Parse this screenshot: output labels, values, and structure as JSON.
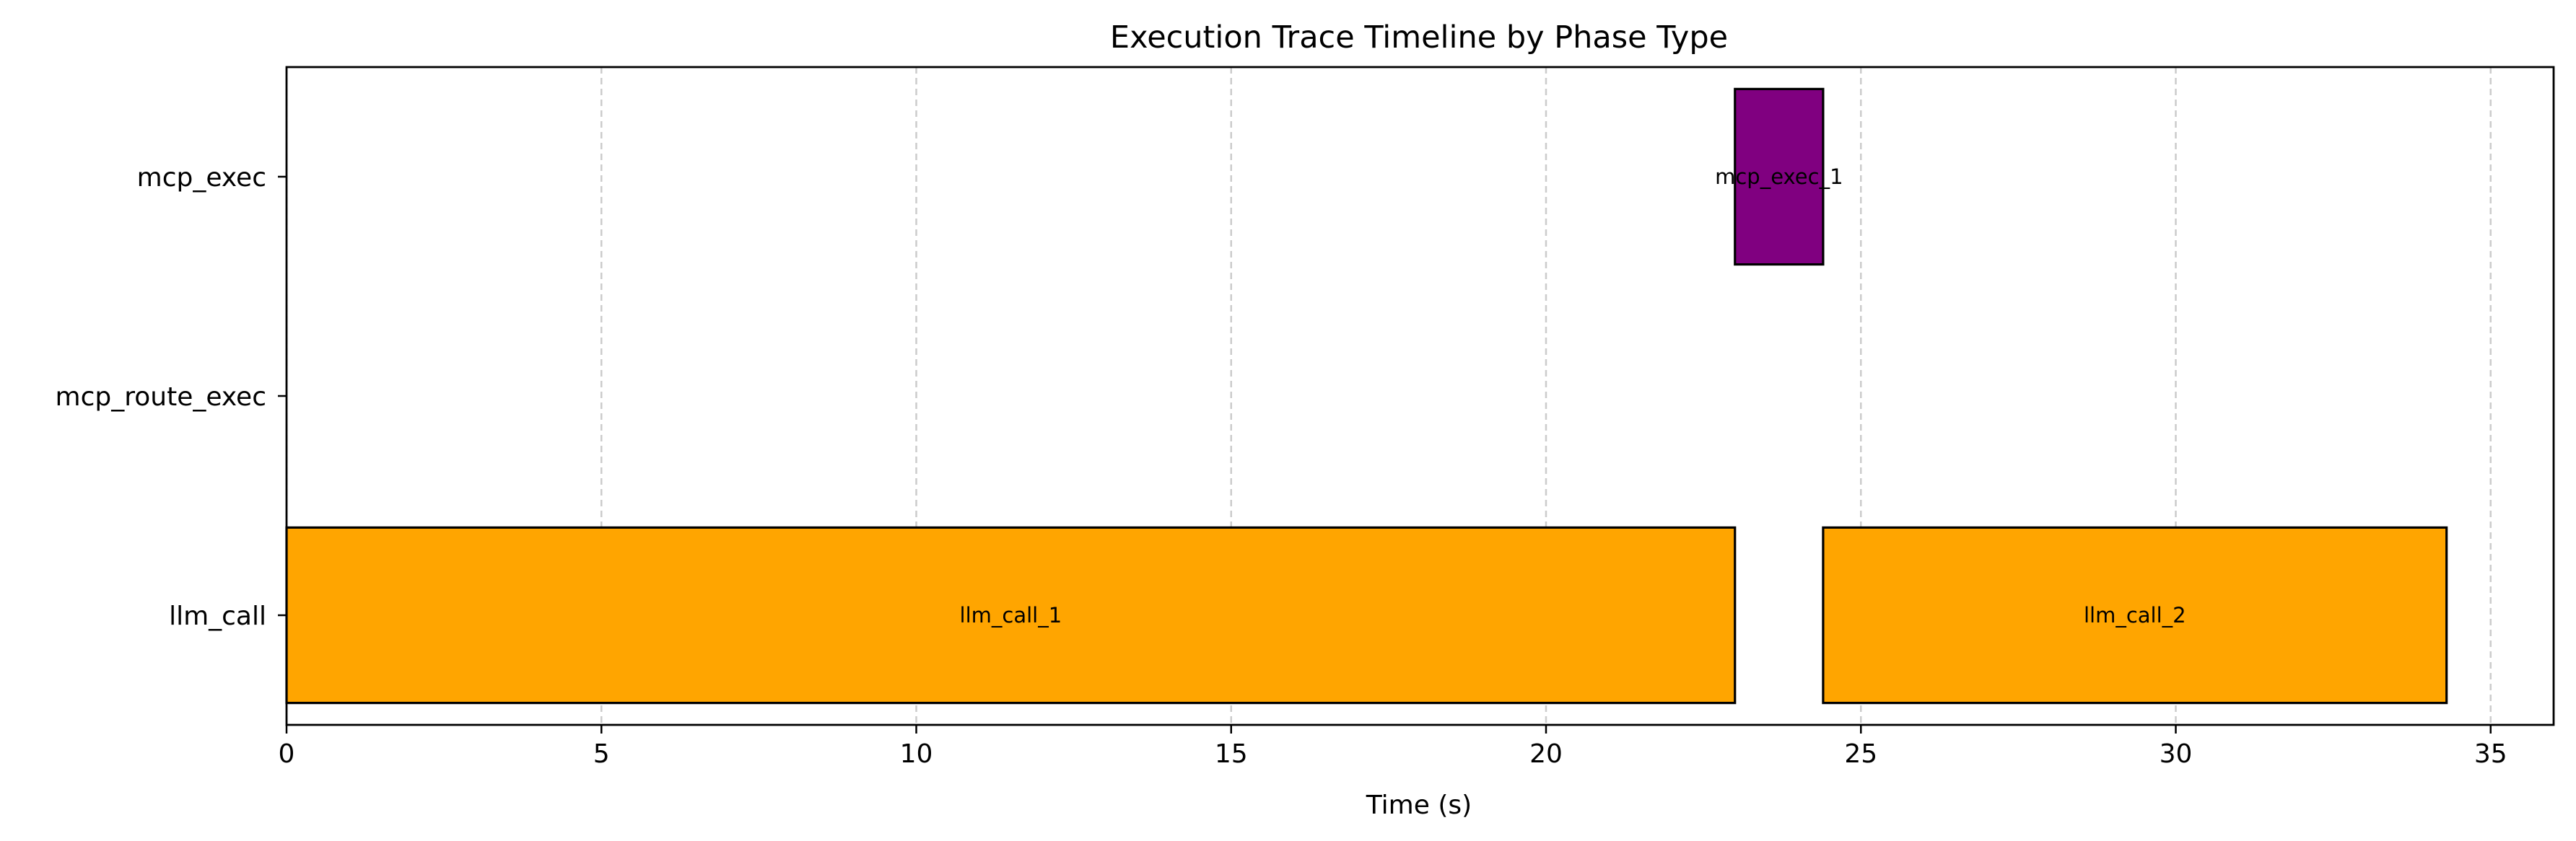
{
  "chart_data": {
    "type": "bar",
    "orientation": "horizontal-timeline",
    "title": "Execution Trace Timeline by Phase Type",
    "xlabel": "Time (s)",
    "ylabel": "",
    "xlim": [
      0,
      36
    ],
    "x_ticks": [
      0,
      5,
      10,
      15,
      20,
      25,
      30,
      35
    ],
    "categories": [
      "llm_call",
      "mcp_route_exec",
      "mcp_exec"
    ],
    "grid": "vertical dashed",
    "bars": [
      {
        "category": "llm_call",
        "label": "llm_call_1",
        "start": 0,
        "end": 23.0,
        "color": "#FFA500"
      },
      {
        "category": "mcp_exec",
        "label": "mcp_exec_1",
        "start": 23.0,
        "end": 24.4,
        "color": "#800080"
      },
      {
        "category": "llm_call",
        "label": "llm_call_2",
        "start": 24.4,
        "end": 34.3,
        "color": "#FFA500"
      }
    ]
  }
}
